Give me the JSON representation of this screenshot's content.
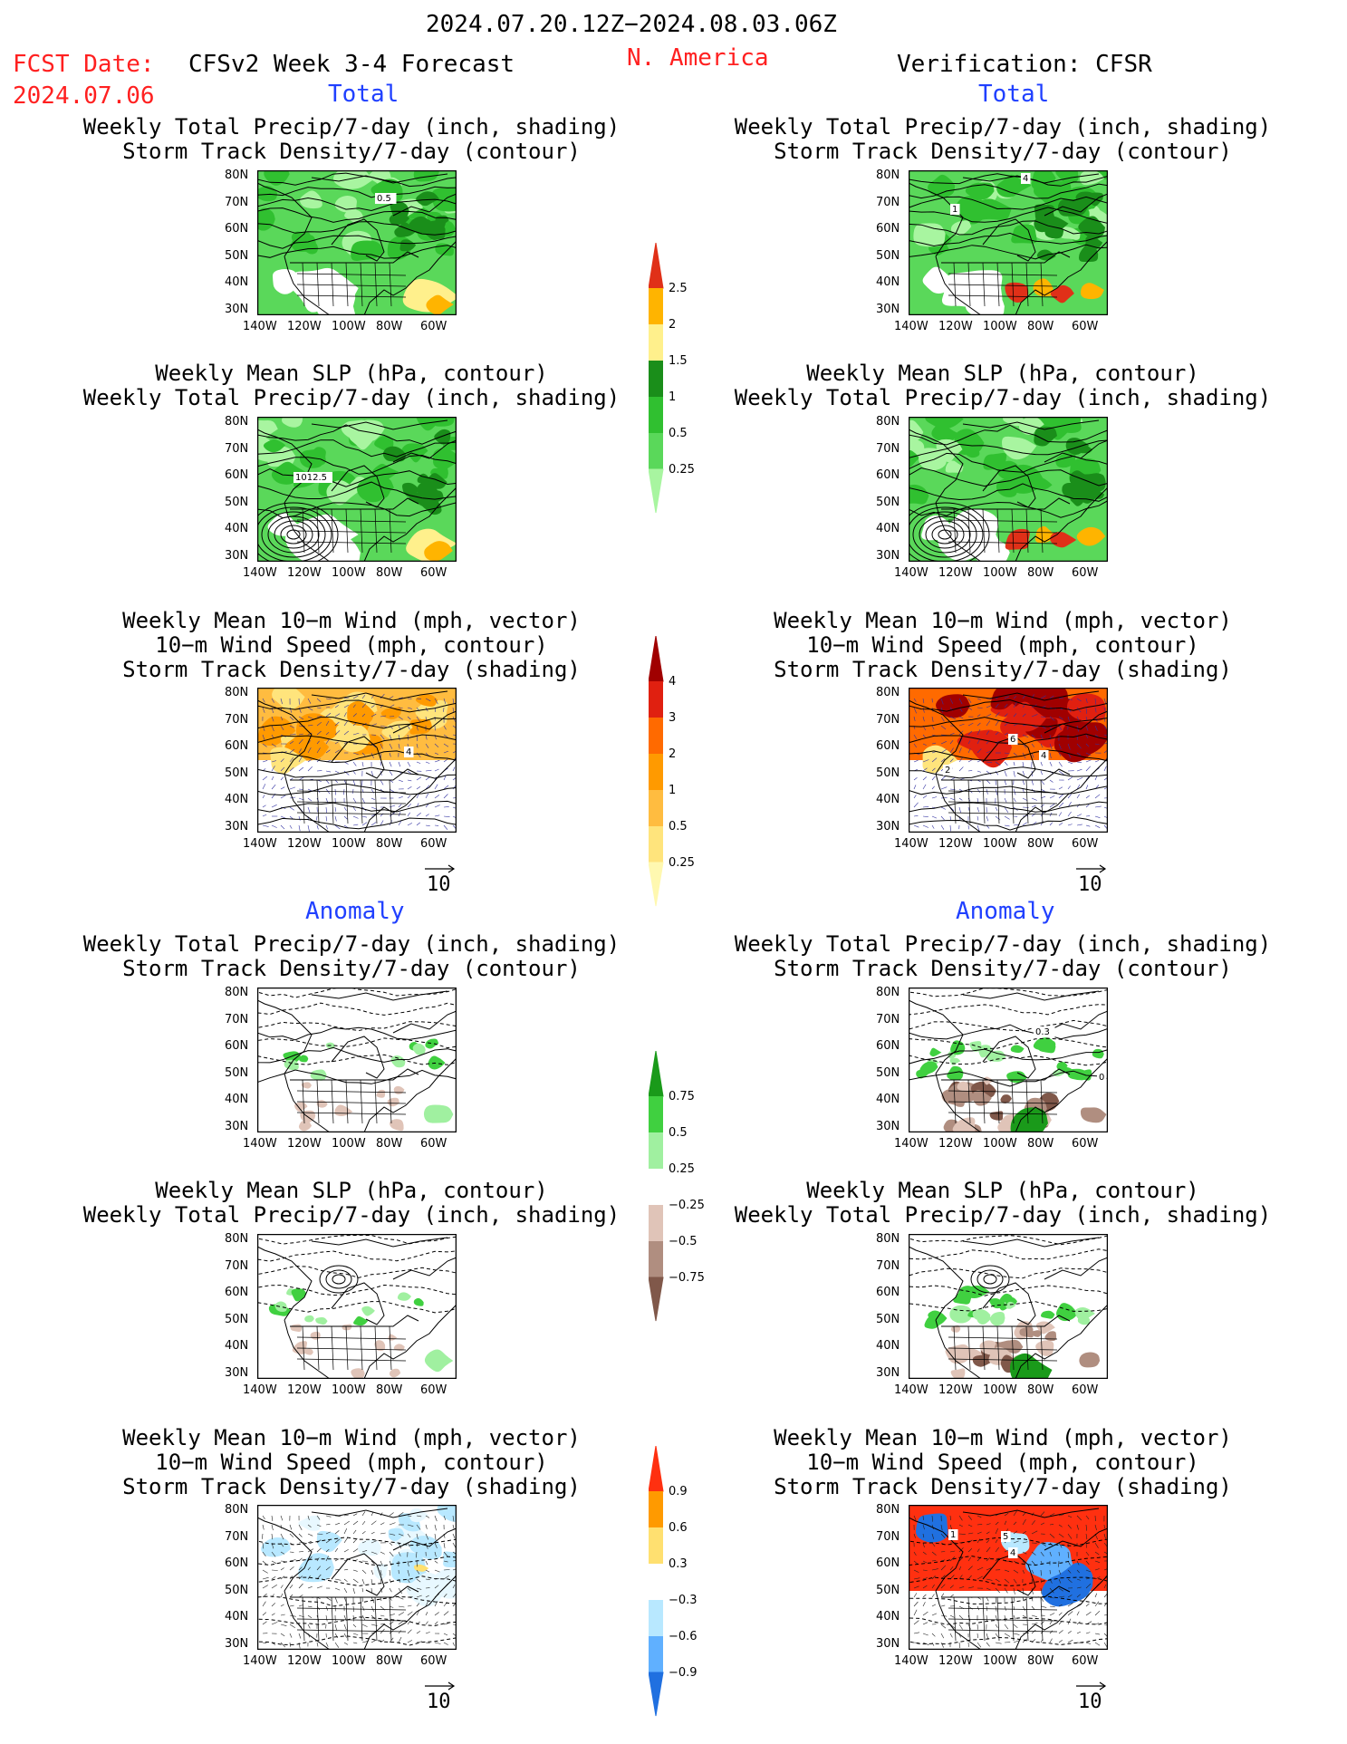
{
  "header": {
    "period": "2024.07.20.12Z−2024.08.03.06Z",
    "fcst_label": "FCST Date:",
    "fcst_date": "2024.07.06",
    "model": "CFSv2 Week 3-4 Forecast",
    "region": "N. America",
    "verification": "Verification: CFSR"
  },
  "sections": [
    {
      "label": "Total"
    },
    {
      "label": "Total"
    },
    {
      "label": "Anomaly"
    },
    {
      "label": "Anomaly"
    }
  ],
  "titles": {
    "precip_storm": [
      "Weekly Total Precip/7-day (inch, shading)",
      "Storm Track Density/7-day (contour)"
    ],
    "slp_precip": [
      "Weekly Mean SLP (hPa, contour)",
      "Weekly Total Precip/7-day (inch, shading)"
    ],
    "wind": [
      "Weekly Mean 10−m Wind (mph, vector)",
      "10−m Wind Speed (mph, contour)",
      "Storm Track Density/7-day (shading)"
    ]
  },
  "axes": {
    "lat_ticks": [
      "80N",
      "70N",
      "60N",
      "50N",
      "40N",
      "30N"
    ],
    "lon_ticks": [
      "140W",
      "120W",
      "100W",
      "80W",
      "60W"
    ]
  },
  "vector_ref": "10",
  "map_labels": {
    "p0": "0.5",
    "p1": "1",
    "p1b": "4",
    "p2": "1012.5",
    "p4": "4",
    "p5a": "6",
    "p5b": "4",
    "p5c": "2",
    "p7": "0.3",
    "p7b": "0",
    "p11a": "1",
    "p11b": "5",
    "p11c": "4"
  },
  "colorbars": [
    {
      "name": "total-precip",
      "levels": [
        "0.25",
        "0.5",
        "1",
        "1.5",
        "2",
        "2.5"
      ],
      "colors": [
        "#a8f5a0",
        "#5ad85a",
        "#30c030",
        "#1a8e1a",
        "#fff08c",
        "#ffb400",
        "#e03018"
      ]
    },
    {
      "name": "storm-density",
      "levels": [
        "0.25",
        "0.5",
        "1",
        "2",
        "3",
        "4"
      ],
      "colors": [
        "#fff8b0",
        "#ffe47c",
        "#ffbc40",
        "#ff9a00",
        "#ff6a00",
        "#e02010",
        "#a00000"
      ]
    },
    {
      "name": "precip-anomaly",
      "levels": [
        "0.75",
        "0.5",
        "0.25",
        "−0.25",
        "−0.5",
        "−0.75"
      ],
      "colors": [
        "#1a9a1a",
        "#40d040",
        "#a0f0a0",
        "#ffffff",
        "#e0c4b8",
        "#b08e80",
        "#80584a"
      ]
    },
    {
      "name": "storm-anomaly",
      "levels": [
        "0.9",
        "0.6",
        "0.3",
        "−0.3",
        "−0.6",
        "−0.9"
      ],
      "colors": [
        "#ff3010",
        "#ff9a00",
        "#ffe070",
        "#ffffff",
        "#b8e8ff",
        "#60b0ff",
        "#2070e0"
      ]
    }
  ]
}
